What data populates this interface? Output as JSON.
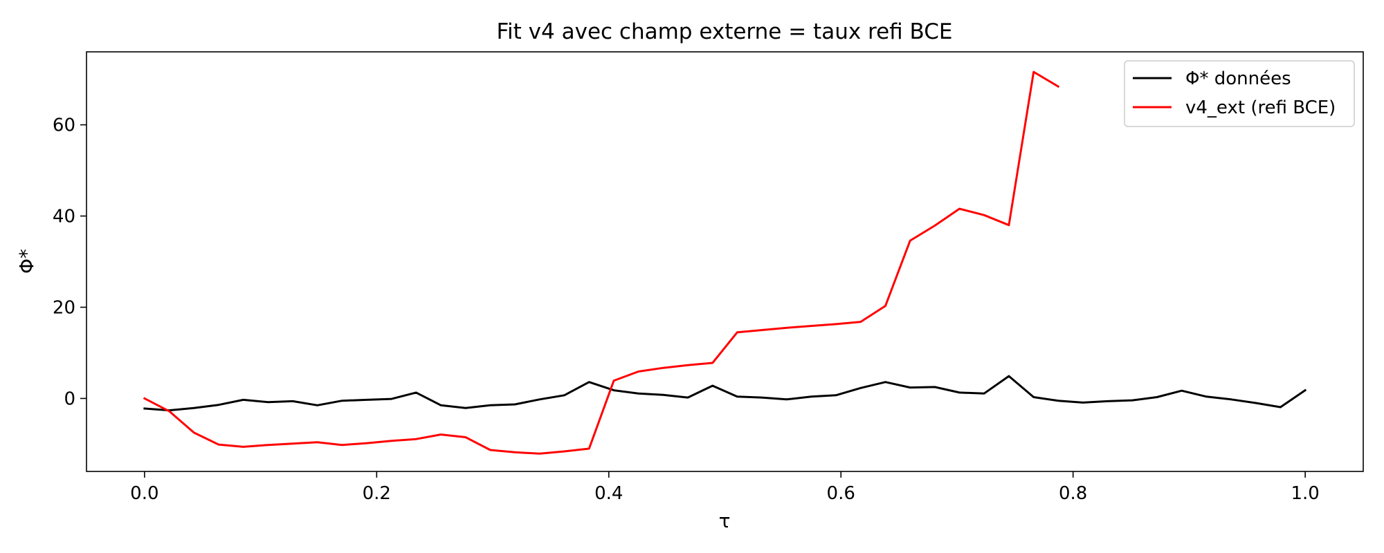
{
  "chart_data": {
    "type": "line",
    "title": "Fit v4 avec champ externe = taux refi BCE",
    "xlabel": "τ",
    "ylabel": "Φ*",
    "xlim": [
      -0.05,
      1.05
    ],
    "ylim": [
      -16,
      76
    ],
    "xticks": [
      0.0,
      0.2,
      0.4,
      0.6,
      0.8,
      1.0
    ],
    "xtick_labels": [
      "0.0",
      "0.2",
      "0.4",
      "0.6",
      "0.8",
      "1.0"
    ],
    "yticks": [
      0,
      20,
      40,
      60
    ],
    "ytick_labels": [
      "0",
      "20",
      "40",
      "60"
    ],
    "grid": false,
    "legend": "top-right",
    "series": [
      {
        "name": "Φ* données",
        "color": "#000000",
        "x": [
          0.0,
          0.0213,
          0.0426,
          0.0638,
          0.0851,
          0.1064,
          0.1277,
          0.1489,
          0.1702,
          0.1915,
          0.2128,
          0.234,
          0.2553,
          0.2766,
          0.2979,
          0.3191,
          0.3404,
          0.3617,
          0.383,
          0.4043,
          0.4255,
          0.4468,
          0.4681,
          0.4894,
          0.5106,
          0.5319,
          0.5532,
          0.5745,
          0.5957,
          0.617,
          0.6383,
          0.6596,
          0.6809,
          0.7021,
          0.7234,
          0.7447,
          0.766,
          0.7872,
          0.8085,
          0.8298,
          0.8511,
          0.8723,
          0.8936,
          0.9149,
          0.9362,
          0.9574,
          0.9787,
          1.0
        ],
        "y": [
          -2.2,
          -2.6,
          -2.1,
          -1.4,
          -0.3,
          -0.8,
          -0.6,
          -1.5,
          -0.5,
          -0.3,
          -0.1,
          1.3,
          -1.5,
          -2.1,
          -1.5,
          -1.3,
          -0.2,
          0.7,
          3.6,
          1.8,
          1.1,
          0.8,
          0.2,
          2.8,
          0.4,
          0.2,
          -0.2,
          0.4,
          0.7,
          2.3,
          3.6,
          2.4,
          2.5,
          1.3,
          1.1,
          4.9,
          0.3,
          -0.5,
          -0.9,
          -0.6,
          -0.4,
          0.3,
          1.7,
          0.4,
          -0.2,
          -1.0,
          -1.9,
          1.8
        ]
      },
      {
        "name": "v4_ext (refi BCE)",
        "color": "#ff0000",
        "x": [
          0.0,
          0.0213,
          0.0426,
          0.0638,
          0.0851,
          0.1064,
          0.1277,
          0.1489,
          0.1702,
          0.1915,
          0.2128,
          0.234,
          0.2553,
          0.2766,
          0.2979,
          0.3191,
          0.3404,
          0.3617,
          0.383,
          0.4043,
          0.4255,
          0.4468,
          0.4681,
          0.4894,
          0.5106,
          0.5319,
          0.5532,
          0.5745,
          0.5957,
          0.617,
          0.6383,
          0.6596,
          0.6809,
          0.7021,
          0.7234,
          0.7447,
          0.766,
          0.7872
        ],
        "y": [
          0.0,
          -2.8,
          -7.5,
          -10.1,
          -10.6,
          -10.2,
          -9.9,
          -9.6,
          -10.2,
          -9.8,
          -9.3,
          -8.9,
          -7.9,
          -8.5,
          -11.3,
          -11.8,
          -12.1,
          -11.6,
          -11.0,
          3.9,
          5.9,
          6.7,
          7.3,
          7.8,
          14.5,
          15.0,
          15.5,
          15.9,
          16.3,
          16.8,
          20.3,
          34.6,
          37.9,
          41.6,
          40.2,
          38.0,
          71.6,
          68.4
        ]
      }
    ]
  }
}
